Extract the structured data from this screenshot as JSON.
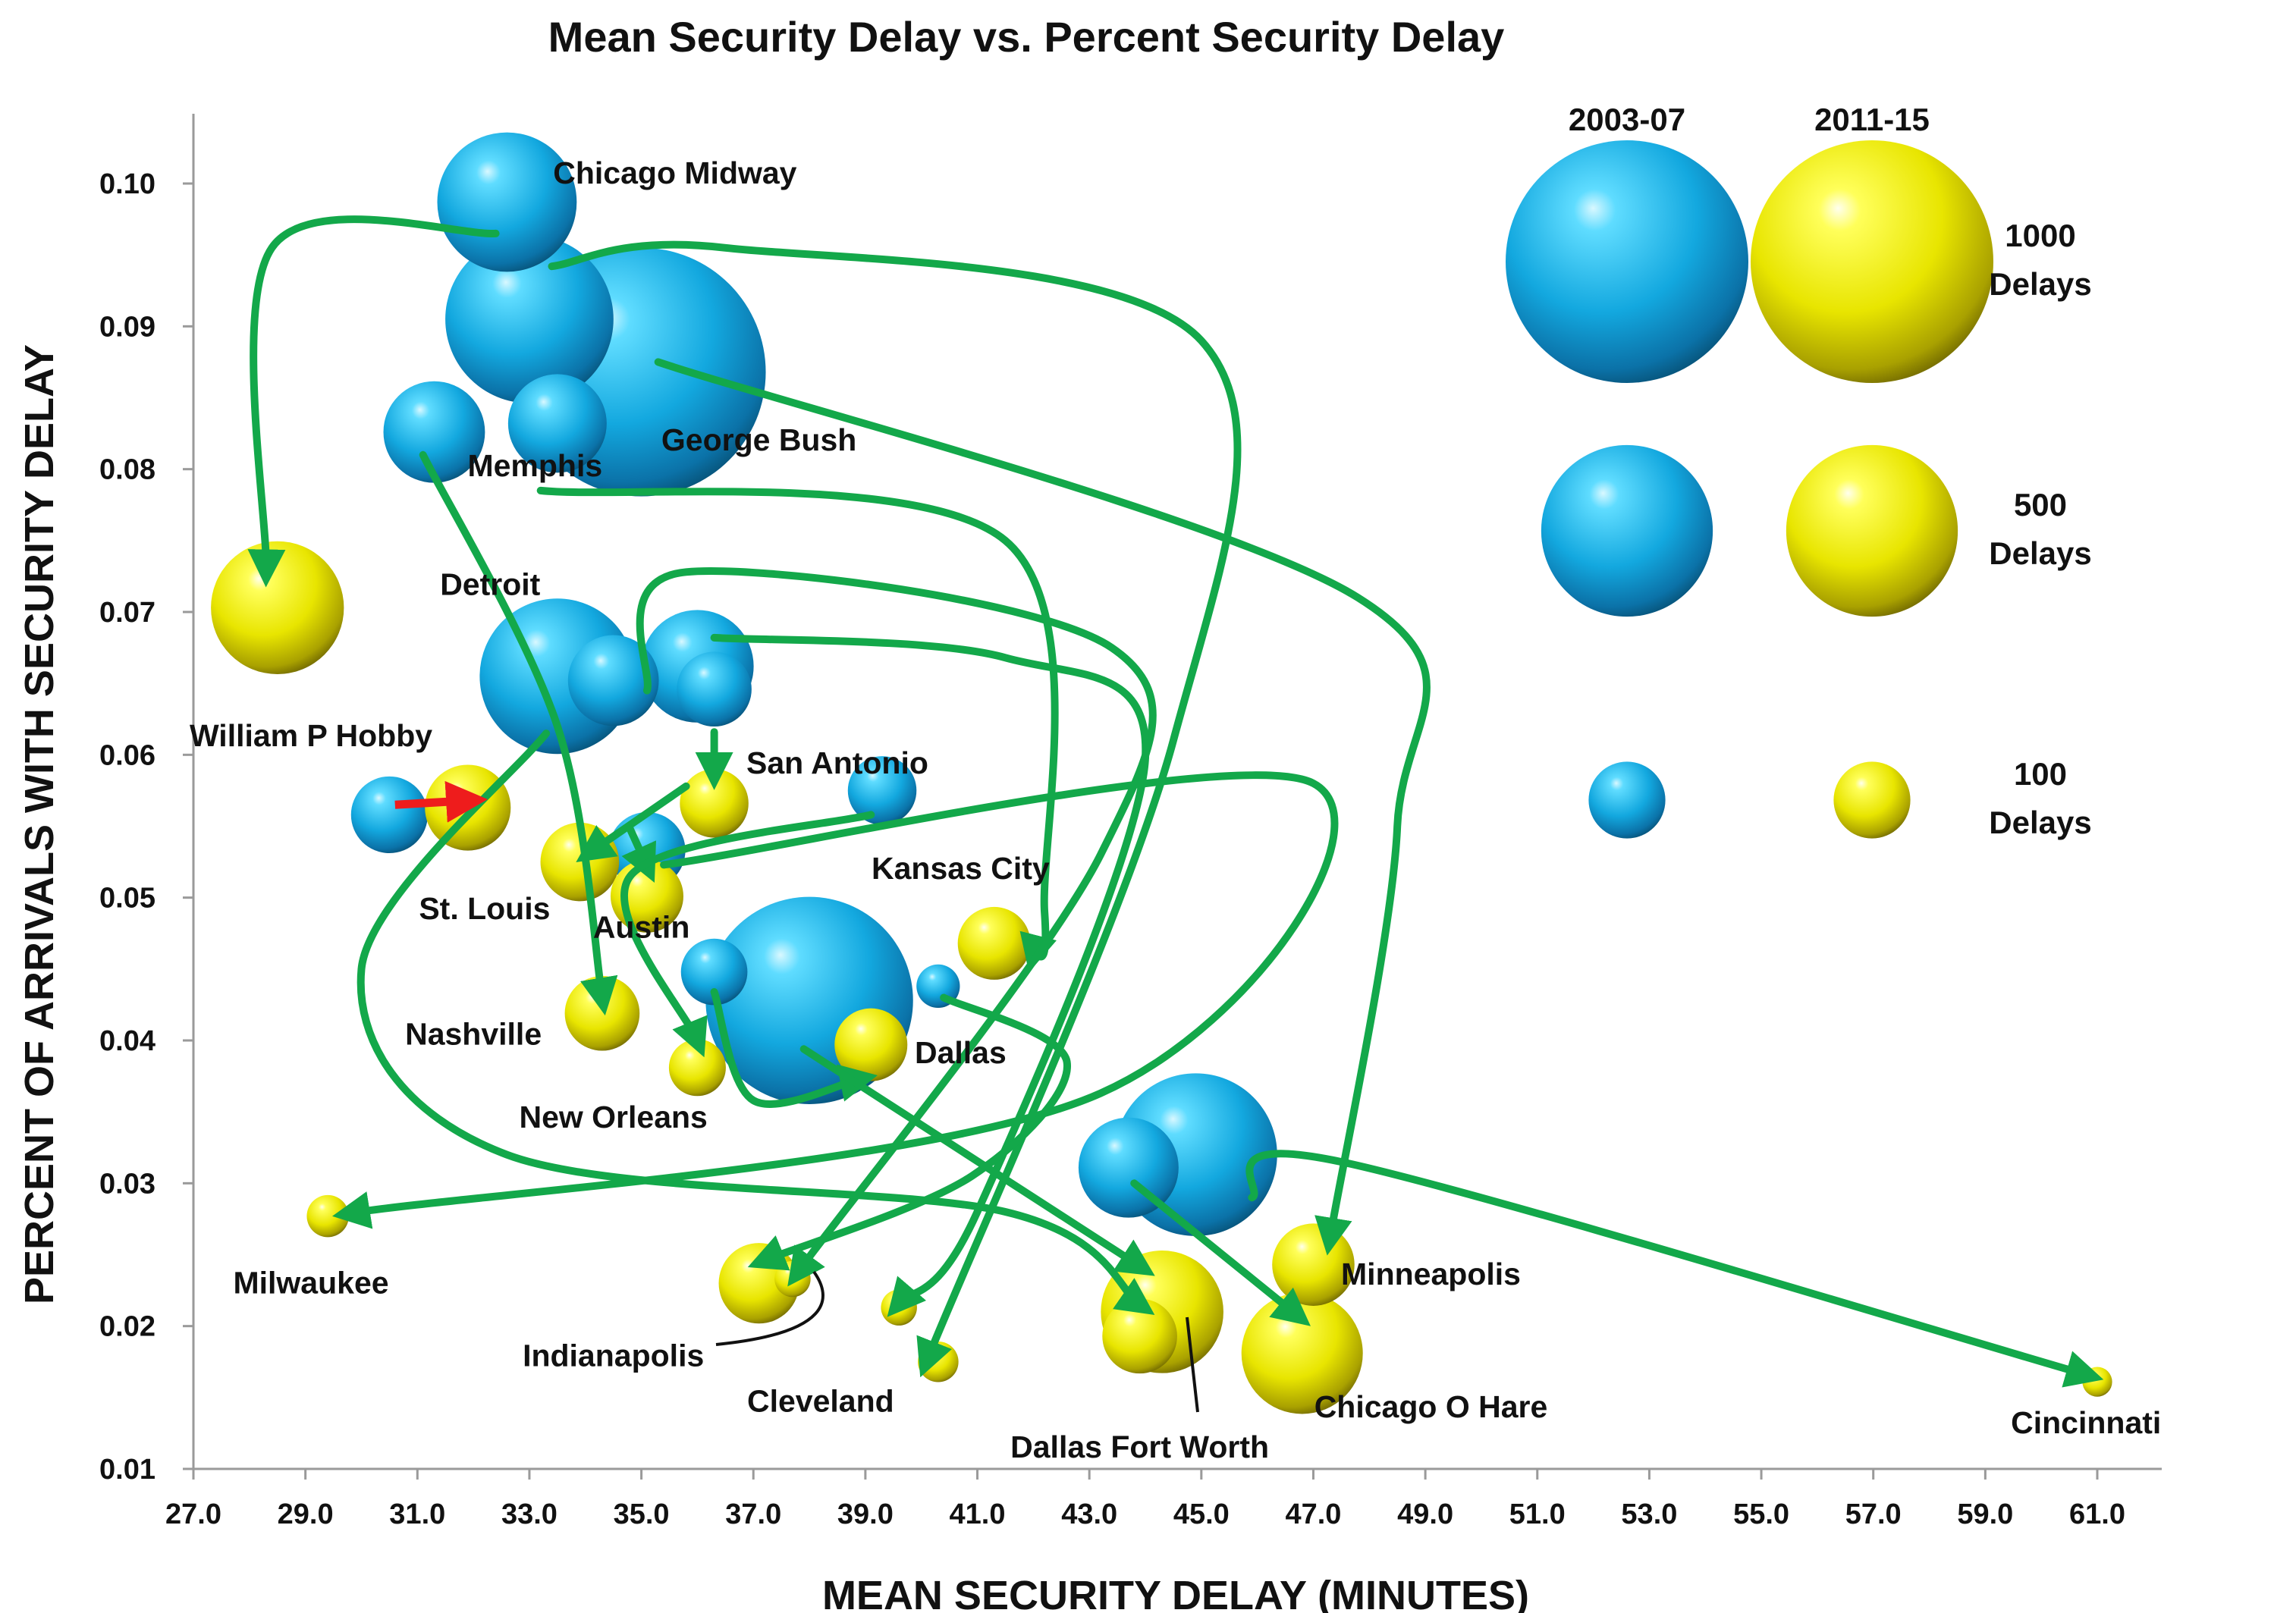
{
  "chart_data": {
    "type": "bubble",
    "title": "Mean Security Delay vs. Percent Security Delay",
    "xlabel": "MEAN SECURITY DELAY (MINUTES)",
    "ylabel": "PERCENT OF ARRIVALS WITH SECURITY DELAY",
    "xlim": [
      27.0,
      61.0
    ],
    "ylim": [
      0.01,
      0.1
    ],
    "x_ticks": [
      "27.0",
      "29.0",
      "31.0",
      "33.0",
      "35.0",
      "37.0",
      "39.0",
      "41.0",
      "43.0",
      "45.0",
      "47.0",
      "49.0",
      "51.0",
      "53.0",
      "55.0",
      "57.0",
      "59.0",
      "61.0"
    ],
    "y_ticks": [
      "0.01",
      "0.02",
      "0.03",
      "0.04",
      "0.05",
      "0.06",
      "0.07",
      "0.08",
      "0.09",
      "0.10"
    ],
    "size_unit": "delays",
    "series": [
      {
        "name": "2003-07",
        "color": "#1fb4e6",
        "points": [
          {
            "id": "b-hou",
            "x": 30.5,
            "y": 0.0558,
            "size": 100
          },
          {
            "id": "b-chi-o",
            "x": 33.0,
            "y": 0.0905,
            "size": 480
          },
          {
            "id": "b-iah",
            "x": 35.0,
            "y": 0.0868,
            "size": 1050
          },
          {
            "id": "b-mdw",
            "x": 32.6,
            "y": 0.0987,
            "size": 330
          },
          {
            "id": "b-mke",
            "x": 33.5,
            "y": 0.0832,
            "size": 165
          },
          {
            "id": "b-mem",
            "x": 31.3,
            "y": 0.0826,
            "size": 175
          },
          {
            "id": "b-dtw",
            "x": 33.5,
            "y": 0.0655,
            "size": 410
          },
          {
            "id": "b-sto",
            "x": 34.5,
            "y": 0.0652,
            "size": 140
          },
          {
            "id": "b-dfw",
            "x": 36.0,
            "y": 0.0662,
            "size": 215
          },
          {
            "id": "b-sat",
            "x": 36.3,
            "y": 0.0646,
            "size": 95
          },
          {
            "id": "b-aus",
            "x": 35.1,
            "y": 0.0533,
            "size": 100
          },
          {
            "id": "b-kc",
            "x": 39.3,
            "y": 0.0575,
            "size": 80
          },
          {
            "id": "b-msy",
            "x": 36.3,
            "y": 0.0448,
            "size": 75
          },
          {
            "id": "b-cle",
            "x": 38.0,
            "y": 0.0428,
            "size": 730
          },
          {
            "id": "b-cvg",
            "x": 40.3,
            "y": 0.0438,
            "size": 32
          },
          {
            "id": "b-msp",
            "x": 44.9,
            "y": 0.032,
            "size": 450
          },
          {
            "id": "b-ind",
            "x": 43.7,
            "y": 0.0311,
            "size": 170
          }
        ]
      },
      {
        "name": "2011-15",
        "color": "#ecec10",
        "points": [
          {
            "id": "y-mdw",
            "x": 28.5,
            "y": 0.0703,
            "size": 300
          },
          {
            "id": "y-hou",
            "x": 31.9,
            "y": 0.0563,
            "size": 125
          },
          {
            "id": "y-stl",
            "x": 33.9,
            "y": 0.0525,
            "size": 105
          },
          {
            "id": "y-aus",
            "x": 35.1,
            "y": 0.0501,
            "size": 90
          },
          {
            "id": "y-sat",
            "x": 36.3,
            "y": 0.0566,
            "size": 80
          },
          {
            "id": "y-bna",
            "x": 34.3,
            "y": 0.0419,
            "size": 95
          },
          {
            "id": "y-msy",
            "x": 36.0,
            "y": 0.0381,
            "size": 55
          },
          {
            "id": "y-dal",
            "x": 39.1,
            "y": 0.0397,
            "size": 90
          },
          {
            "id": "y-mci",
            "x": 41.3,
            "y": 0.0468,
            "size": 90
          },
          {
            "id": "y-mke",
            "x": 29.4,
            "y": 0.0277,
            "size": 30
          },
          {
            "id": "y-ind-a",
            "x": 37.1,
            "y": 0.023,
            "size": 110
          },
          {
            "id": "y-ind-b",
            "x": 37.7,
            "y": 0.0233,
            "size": 22
          },
          {
            "id": "y-cle-a",
            "x": 39.6,
            "y": 0.0213,
            "size": 22
          },
          {
            "id": "y-cle-b",
            "x": 40.3,
            "y": 0.0175,
            "size": 28
          },
          {
            "id": "y-dfw-a",
            "x": 44.3,
            "y": 0.021,
            "size": 255
          },
          {
            "id": "y-dfw-b",
            "x": 43.9,
            "y": 0.0193,
            "size": 95
          },
          {
            "id": "y-msp",
            "x": 47.0,
            "y": 0.0243,
            "size": 115
          },
          {
            "id": "y-ord",
            "x": 46.8,
            "y": 0.0181,
            "size": 250
          },
          {
            "id": "y-cvg",
            "x": 61.0,
            "y": 0.0161,
            "size": 15
          }
        ]
      }
    ],
    "labels": [
      {
        "text": "Chicago Midway",
        "x": 35.6,
        "y": 0.1
      },
      {
        "text": "Memphis",
        "x": 33.1,
        "y": 0.0795
      },
      {
        "text": "George Bush",
        "x": 37.1,
        "y": 0.0813
      },
      {
        "text": "Detroit",
        "x": 32.3,
        "y": 0.0712
      },
      {
        "text": "San Antonio",
        "x": 38.5,
        "y": 0.0587
      },
      {
        "text": "William P Hobby",
        "x": 29.1,
        "y": 0.0606
      },
      {
        "text": "St. Louis",
        "x": 32.2,
        "y": 0.0485
      },
      {
        "text": "Austin",
        "x": 35.0,
        "y": 0.0472
      },
      {
        "text": "Kansas City",
        "x": 40.7,
        "y": 0.0513
      },
      {
        "text": "Nashville",
        "x": 32.0,
        "y": 0.0397
      },
      {
        "text": "New Orleans",
        "x": 34.5,
        "y": 0.0339
      },
      {
        "text": "Dallas",
        "x": 40.7,
        "y": 0.0384
      },
      {
        "text": "Milwaukee",
        "x": 29.1,
        "y": 0.0223
      },
      {
        "text": "Indianapolis",
        "x": 34.5,
        "y": 0.0172
      },
      {
        "text": "Cleveland",
        "x": 38.2,
        "y": 0.014
      },
      {
        "text": "Dallas Fort Worth",
        "x": 43.9,
        "y": 0.0108
      },
      {
        "text": "Minneapolis",
        "x": 49.1,
        "y": 0.0229
      },
      {
        "text": "Chicago O Hare",
        "x": 49.1,
        "y": 0.0136
      },
      {
        "text": "Cincinnati",
        "x": 60.8,
        "y": 0.0125
      }
    ],
    "size_legend": {
      "headers": [
        "2003-07",
        "2011-15"
      ],
      "entries": [
        {
          "size": 1000,
          "lines": [
            "1000",
            "Delays"
          ]
        },
        {
          "size": 500,
          "lines": [
            "500",
            "Delays"
          ]
        },
        {
          "size": 100,
          "lines": [
            "100",
            "Delays"
          ]
        }
      ]
    },
    "arrows": [
      {
        "color": "green",
        "path": [
          [
            32.4,
            0.0965
          ],
          [
            28.4,
            0.0955
          ],
          [
            28.3,
            0.073
          ]
        ]
      },
      {
        "color": "green",
        "path": [
          [
            31.1,
            0.081
          ],
          [
            33.5,
            0.062
          ],
          [
            34.3,
            0.043
          ]
        ]
      },
      {
        "color": "green",
        "path": [
          [
            33.2,
            0.0785
          ],
          [
            41.5,
            0.075
          ],
          [
            42.2,
            0.049
          ],
          [
            42.0,
            0.046
          ]
        ]
      },
      {
        "color": "green",
        "path": [
          [
            35.3,
            0.0875
          ],
          [
            47.8,
            0.071
          ],
          [
            48.5,
            0.055
          ],
          [
            47.3,
            0.0262
          ]
        ]
      },
      {
        "color": "green",
        "path": [
          [
            33.4,
            0.0942
          ],
          [
            36.5,
            0.0955
          ],
          [
            45.0,
            0.089
          ],
          [
            44.5,
            0.061
          ],
          [
            40.1,
            0.0176
          ]
        ]
      },
      {
        "color": "green",
        "path": [
          [
            35.1,
            0.0645
          ],
          [
            35.8,
            0.0728
          ],
          [
            43.4,
            0.0675
          ],
          [
            43.2,
            0.053
          ],
          [
            37.8,
            0.0238
          ]
        ]
      },
      {
        "color": "green",
        "path": [
          [
            33.3,
            0.0615
          ],
          [
            30.0,
            0.045
          ],
          [
            32.6,
            0.032
          ],
          [
            41.5,
            0.028
          ],
          [
            43.9,
            0.0215
          ]
        ]
      },
      {
        "color": "green",
        "path": [
          [
            36.3,
            0.0682
          ],
          [
            41.5,
            0.0668
          ],
          [
            44.0,
            0.0598
          ],
          [
            41.0,
            0.028
          ],
          [
            39.6,
            0.0216
          ]
        ]
      },
      {
        "color": "green",
        "path": [
          [
            35.8,
            0.0578
          ],
          [
            34.1,
            0.0532
          ]
        ]
      },
      {
        "color": "green",
        "path": [
          [
            36.3,
            0.0616
          ],
          [
            36.3,
            0.0588
          ]
        ]
      },
      {
        "color": "green",
        "path": [
          [
            34.8,
            0.0548
          ],
          [
            35.1,
            0.0522
          ]
        ]
      },
      {
        "color": "green",
        "path": [
          [
            35.4,
            0.0523
          ],
          [
            47.0,
            0.058
          ],
          [
            43.2,
            0.0363
          ],
          [
            29.8,
            0.0279
          ]
        ]
      },
      {
        "color": "green",
        "path": [
          [
            39.1,
            0.0558
          ],
          [
            34.8,
            0.0515
          ],
          [
            36.0,
            0.04
          ]
        ]
      },
      {
        "color": "green",
        "path": [
          [
            36.3,
            0.0434
          ],
          [
            37.0,
            0.0358
          ],
          [
            38.9,
            0.0373
          ]
        ]
      },
      {
        "color": "green",
        "path": [
          [
            40.4,
            0.043
          ],
          [
            42.6,
            0.0385
          ],
          [
            40.9,
            0.0305
          ],
          [
            37.2,
            0.0246
          ]
        ]
      },
      {
        "color": "green",
        "path": [
          [
            37.9,
            0.0394
          ],
          [
            43.9,
            0.0242
          ]
        ]
      },
      {
        "color": "green",
        "path": [
          [
            43.8,
            0.03
          ],
          [
            46.7,
            0.0208
          ]
        ]
      },
      {
        "color": "green",
        "path": [
          [
            45.9,
            0.029
          ],
          [
            47.5,
            0.0315
          ],
          [
            60.8,
            0.0166
          ]
        ]
      },
      {
        "color": "red",
        "path": [
          [
            30.6,
            0.0565
          ],
          [
            31.9,
            0.0568
          ]
        ]
      }
    ]
  }
}
